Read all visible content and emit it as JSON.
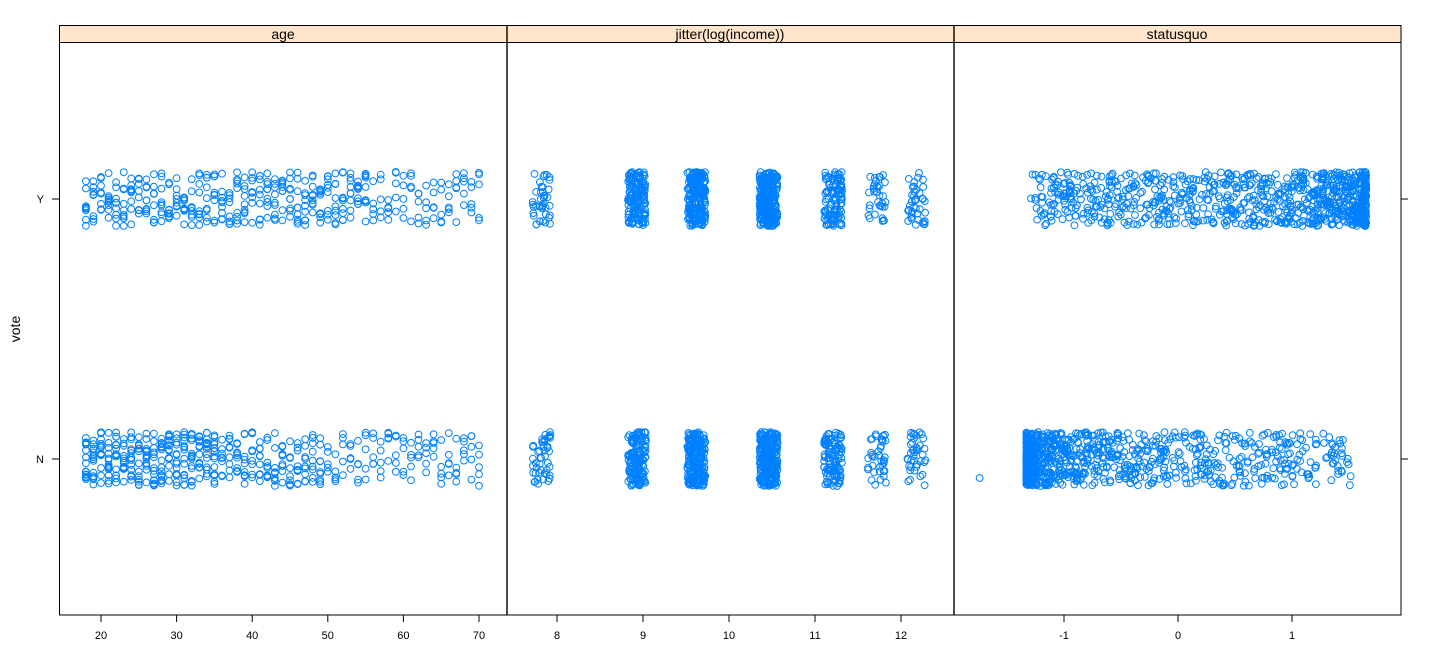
{
  "chart_data": {
    "type": "scatter",
    "title": "",
    "ylabel": "vote",
    "y_categories": [
      "N",
      "Y"
    ],
    "layout": "1 row x 3 panels, shared y axis, free x scales (lattice stripplot)",
    "colors": {
      "point": "#0080ff",
      "strip_bg": "#ffe5cc",
      "border": "#000000",
      "background": "#ffffff"
    },
    "panels": [
      {
        "strip": "age",
        "xlim": [
          15,
          74
        ],
        "x_ticks": [
          20,
          30,
          40,
          50,
          60,
          70
        ],
        "x_tick_labels": [
          "20",
          "30",
          "40",
          "50",
          "60",
          "70"
        ],
        "series": [
          {
            "level": "Y",
            "x_range": [
              18,
              70
            ],
            "distribution": "uniform, integer ages, slight density decline above 55"
          },
          {
            "level": "N",
            "x_range": [
              18,
              70
            ],
            "distribution": "dense at 18-35, declining toward 70"
          }
        ]
      },
      {
        "strip": "jitter(log(income))",
        "xlim": [
          7.4,
          12.6
        ],
        "x_ticks": [
          8,
          9,
          10,
          11,
          12
        ],
        "x_tick_labels": [
          "8",
          "9",
          "10",
          "11",
          "12"
        ],
        "clusters_x": [
          7.82,
          8.93,
          9.62,
          10.46,
          11.21,
          11.72,
          12.18
        ],
        "series": [
          {
            "level": "Y",
            "cluster_sizes": [
              40,
              160,
              220,
              260,
              110,
              35,
              40
            ]
          },
          {
            "level": "N",
            "cluster_sizes": [
              45,
              150,
              210,
              250,
              110,
              40,
              40
            ]
          }
        ]
      },
      {
        "strip": "statusquo",
        "xlim": [
          -1.9,
          2.1
        ],
        "x_ticks": [
          -1,
          0,
          1
        ],
        "x_tick_labels": [
          "-1",
          "0",
          "1"
        ],
        "series": [
          {
            "level": "Y",
            "x_range": [
              -1.3,
              1.7
            ],
            "distribution": "sparse near -1, dense 0.5 to 1.6"
          },
          {
            "level": "N",
            "x_range": [
              -1.75,
              1.55
            ],
            "distribution": "dense -1.3 to -0.8, sparse tail to 1.5, outlier at -1.74"
          }
        ]
      }
    ]
  }
}
